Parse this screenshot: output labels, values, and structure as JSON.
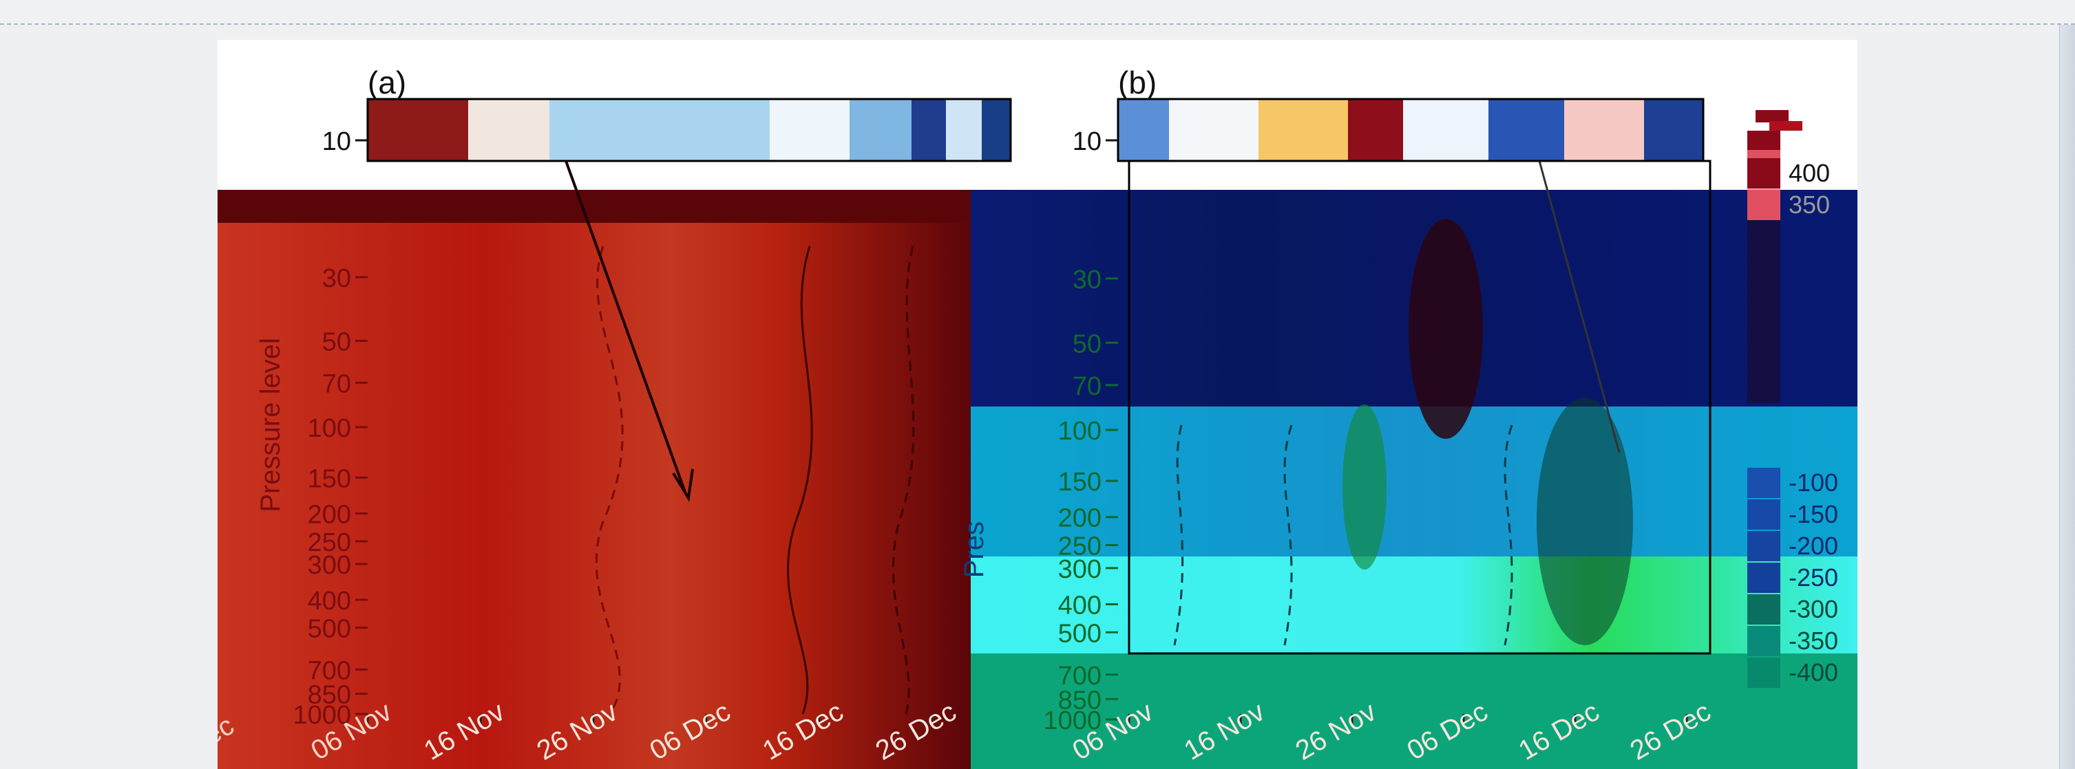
{
  "chart_data": [
    {
      "type": "heatmap",
      "panel_label": "(a)",
      "ylabel": "Pressure level",
      "xlabel": "",
      "y_levels": [
        10,
        30,
        50,
        70,
        100,
        150,
        200,
        250,
        300,
        400,
        500,
        700,
        850,
        1000
      ],
      "y_scale": "log",
      "x_ticks": [
        "06 Nov",
        "16 Nov",
        "26 Nov",
        "06 Dec",
        "16 Dec",
        "26 Dec"
      ],
      "x_partial_left": "ec",
      "grid": false,
      "legend": "none",
      "bands": [
        {
          "from": "06 Nov",
          "to": "14 Nov",
          "color": "#c8311f"
        },
        {
          "from": "14 Nov",
          "to": "20 Nov",
          "color": "#b51a12"
        },
        {
          "from": "20 Nov",
          "to": "24 Nov",
          "color": "#c23b22"
        },
        {
          "from": "24 Nov",
          "to": "04 Dec",
          "color": "#b81a10"
        },
        {
          "from": "04 Dec",
          "to": "10 Dec",
          "color": "#c53a22"
        },
        {
          "from": "10 Dec",
          "to": "26 Dec",
          "color": "#6a0b0e"
        }
      ]
    },
    {
      "type": "heatmap",
      "panel_label": "(b)",
      "ylabel": "Pres",
      "xlabel": "",
      "y_levels": [
        10,
        30,
        50,
        70,
        100,
        150,
        200,
        250,
        300,
        400,
        500,
        700,
        850,
        1000
      ],
      "y_scale": "log",
      "x_ticks": [
        "06 Nov",
        "16 Nov",
        "26 Nov",
        "06 Dec",
        "16 Dec",
        "26 Dec"
      ],
      "grid": false,
      "legend": "right",
      "colorbar": {
        "labels": [
          "400",
          "350",
          "-100",
          "-150",
          "-200",
          "-250",
          "-300",
          "-350",
          "-400"
        ],
        "colors": [
          "#8b0a1a",
          "#e05060",
          "#1a4fb0",
          "#174aa8",
          "#1545a0",
          "#12409a",
          "#0a6e60",
          "#0a8a78",
          "#078a6c"
        ]
      }
    }
  ]
}
